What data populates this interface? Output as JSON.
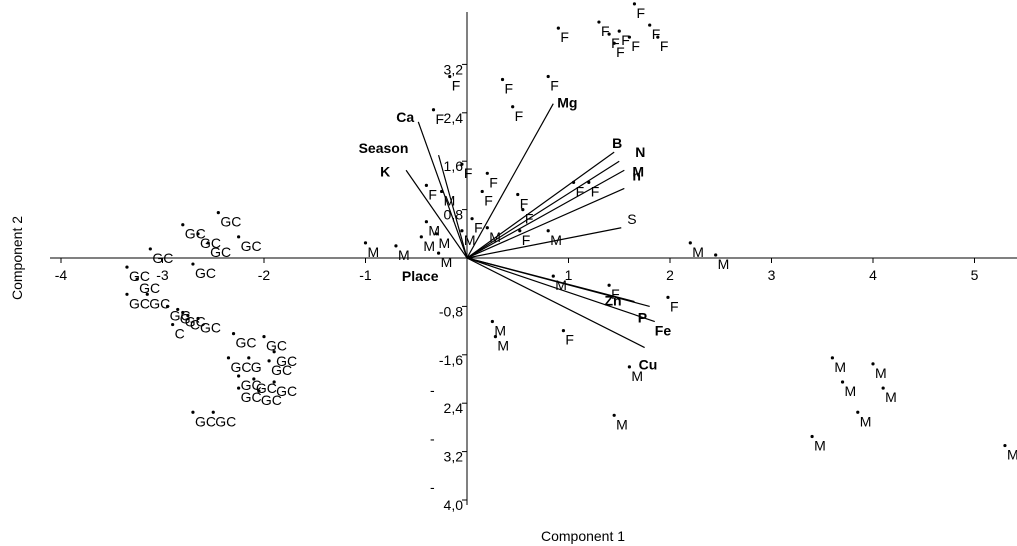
{
  "chart_data": {
    "type": "scatter",
    "title": "",
    "xlabel": "Component 1",
    "ylabel": "Component 2",
    "xlim": [
      -4,
      5.5
    ],
    "ylim": [
      -4.0,
      4.8
    ],
    "grid": false,
    "x_ticks": [
      {
        "value": -4,
        "label": "-4"
      },
      {
        "value": -3,
        "label": "-3"
      },
      {
        "value": -2,
        "label": "-2"
      },
      {
        "value": -1,
        "label": "-1"
      },
      {
        "value": 1,
        "label": "1"
      },
      {
        "value": 2,
        "label": "2"
      },
      {
        "value": 3,
        "label": "3"
      },
      {
        "value": 4,
        "label": "4"
      },
      {
        "value": 5,
        "label": "5"
      }
    ],
    "y_ticks": [
      {
        "value": 3.2,
        "label": "3,2"
      },
      {
        "value": 2.4,
        "label": "2,4"
      },
      {
        "value": 1.6,
        "label": "1,6"
      },
      {
        "value": 0.8,
        "label": "0,8"
      },
      {
        "value": -0.8,
        "label": "-0,8"
      },
      {
        "value": -1.6,
        "label": "-1,6"
      },
      {
        "value": -2.4,
        "label": "-\n2,4"
      },
      {
        "value": -3.2,
        "label": "-\n3,2"
      },
      {
        "value": -4.0,
        "label": "-\n4,0"
      }
    ],
    "loadings": [
      {
        "label": "Mg",
        "x": 0.85,
        "y": 2.55
      },
      {
        "label": "B",
        "x": 1.45,
        "y": 1.75
      },
      {
        "label": "N",
        "x": 1.5,
        "y": 1.6
      },
      {
        "label": "M",
        "x": 1.55,
        "y": 1.45
      },
      {
        "label": "n",
        "x": 1.55,
        "y": 1.15
      },
      {
        "label": "S",
        "x": 1.52,
        "y": 0.5
      },
      {
        "label": "Ca",
        "x": -0.48,
        "y": 2.25
      },
      {
        "label": "Season",
        "x": -0.28,
        "y": 1.7
      },
      {
        "label": "K",
        "x": -0.6,
        "y": 1.45
      },
      {
        "label": "Place",
        "x": -0.05,
        "y": -0.05
      },
      {
        "label": "Zn",
        "x": 1.65,
        "y": -0.72
      },
      {
        "label": "P",
        "x": 1.8,
        "y": -0.8
      },
      {
        "label": "Fe",
        "x": 1.85,
        "y": -1.05
      },
      {
        "label": "Cu",
        "x": 1.75,
        "y": -1.48
      }
    ],
    "series": [
      {
        "name": "F",
        "points": [
          [
            1.15,
            4.5
          ],
          [
            1.65,
            4.2
          ],
          [
            1.3,
            3.9
          ],
          [
            1.8,
            3.85
          ],
          [
            0.9,
            3.8
          ],
          [
            1.4,
            3.7
          ],
          [
            1.5,
            3.75
          ],
          [
            1.45,
            3.55
          ],
          [
            1.6,
            3.65
          ],
          [
            1.88,
            3.65
          ],
          [
            -0.17,
            3.0
          ],
          [
            0.35,
            2.95
          ],
          [
            0.8,
            3.0
          ],
          [
            0.45,
            2.5
          ],
          [
            -0.33,
            2.45
          ],
          [
            -0.05,
            1.55
          ],
          [
            0.2,
            1.4
          ],
          [
            1.05,
            1.25
          ],
          [
            1.2,
            1.25
          ],
          [
            -0.4,
            1.2
          ],
          [
            0.15,
            1.1
          ],
          [
            0.5,
            1.05
          ],
          [
            0.05,
            0.65
          ],
          [
            0.55,
            0.8
          ],
          [
            0.52,
            0.45
          ],
          [
            1.4,
            -0.45
          ],
          [
            1.98,
            -0.65
          ],
          [
            0.95,
            -1.2
          ]
        ]
      },
      {
        "name": "M",
        "points": [
          [
            -1.0,
            0.25
          ],
          [
            -0.7,
            0.2
          ],
          [
            -0.25,
            1.1
          ],
          [
            -0.4,
            0.6
          ],
          [
            -0.45,
            0.35
          ],
          [
            -0.3,
            0.4
          ],
          [
            -0.05,
            0.45
          ],
          [
            0.2,
            0.5
          ],
          [
            -0.28,
            0.08
          ],
          [
            0.8,
            0.45
          ],
          [
            0.85,
            -0.3
          ],
          [
            2.2,
            0.25
          ],
          [
            2.45,
            0.05
          ],
          [
            0.25,
            -1.05
          ],
          [
            0.28,
            -1.3
          ],
          [
            1.6,
            -1.8
          ],
          [
            1.45,
            -2.6
          ],
          [
            3.6,
            -1.65
          ],
          [
            4.0,
            -1.75
          ],
          [
            3.7,
            -2.05
          ],
          [
            4.1,
            -2.15
          ],
          [
            3.85,
            -2.55
          ],
          [
            3.4,
            -2.95
          ],
          [
            5.5,
            -2.85
          ],
          [
            5.3,
            -3.1
          ]
        ]
      },
      {
        "name": "GC",
        "points": [
          [
            -2.45,
            0.75
          ],
          [
            -2.8,
            0.55
          ],
          [
            -2.65,
            0.4
          ],
          [
            -2.55,
            0.25
          ],
          [
            -2.25,
            0.35
          ],
          [
            -3.12,
            0.15
          ],
          [
            -2.7,
            -0.1
          ],
          [
            -3.35,
            -0.15
          ],
          [
            -3.25,
            -0.35
          ],
          [
            -3.35,
            -0.6
          ],
          [
            -3.15,
            -0.6
          ],
          [
            -2.95,
            -0.8
          ],
          [
            -2.8,
            -0.9
          ],
          [
            -2.65,
            -1.0
          ],
          [
            -2.3,
            -1.25
          ],
          [
            -2.0,
            -1.3
          ],
          [
            -1.9,
            -1.55
          ],
          [
            -2.35,
            -1.65
          ],
          [
            -1.95,
            -1.7
          ],
          [
            -2.25,
            -1.95
          ],
          [
            -2.1,
            -2.0
          ],
          [
            -1.9,
            -2.05
          ],
          [
            -2.25,
            -2.15
          ],
          [
            -2.05,
            -2.2
          ],
          [
            -2.7,
            -2.55
          ],
          [
            -2.5,
            -2.55
          ]
        ]
      },
      {
        "name": "G",
        "points": [
          [
            -2.85,
            -0.85
          ],
          [
            -2.15,
            -1.65
          ]
        ]
      },
      {
        "name": "C",
        "points": [
          [
            -2.9,
            -1.1
          ],
          [
            -2.75,
            -0.95
          ]
        ]
      }
    ]
  }
}
